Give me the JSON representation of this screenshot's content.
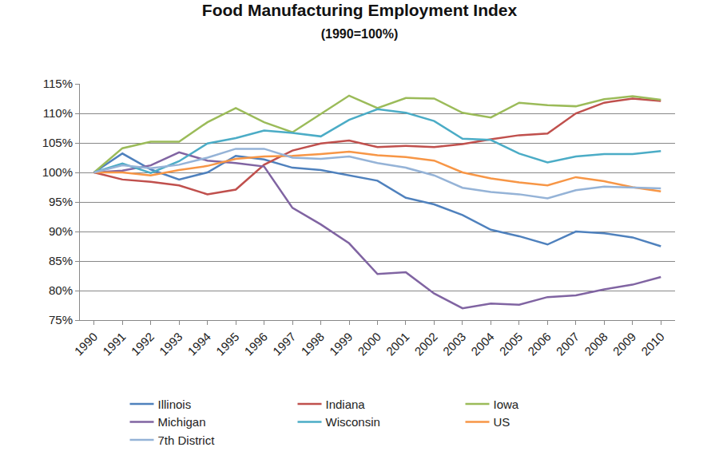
{
  "chart_data": {
    "type": "line",
    "title": "Food Manufacturing Employment Index",
    "subtitle": "(1990=100%)",
    "categories": [
      "1990",
      "1991",
      "1992",
      "1993",
      "1994",
      "1995",
      "1996",
      "1997",
      "1998",
      "1999",
      "2000",
      "2001",
      "2002",
      "2003",
      "2004",
      "2005",
      "2006",
      "2007",
      "2008",
      "2009",
      "2010"
    ],
    "series": [
      {
        "name": "Illinois",
        "color": "#4F81BD",
        "values": [
          100,
          103.2,
          100.5,
          98.8,
          100,
          102.8,
          102.2,
          100.8,
          100.4,
          99.5,
          98.6,
          95.7,
          94.6,
          92.8,
          90.3,
          89.2,
          87.8,
          90,
          89.7,
          89,
          87.5
        ]
      },
      {
        "name": "Indiana",
        "color": "#C0504D",
        "values": [
          100,
          98.8,
          98.4,
          97.8,
          96.3,
          97.1,
          101.3,
          103.7,
          104.9,
          105.4,
          104.3,
          104.5,
          104.3,
          104.8,
          105.6,
          106.3,
          106.6,
          110,
          111.8,
          112.5,
          112.1
        ]
      },
      {
        "name": "Iowa",
        "color": "#9BBB59",
        "values": [
          100,
          104.1,
          105.2,
          105.2,
          108.5,
          110.9,
          108.5,
          106.8,
          109.9,
          113,
          110.9,
          112.6,
          112.5,
          110.1,
          109.3,
          111.8,
          111.4,
          111.2,
          112.4,
          112.9,
          112.3
        ]
      },
      {
        "name": "Michigan",
        "color": "#8064A2",
        "values": [
          100,
          100.3,
          101.2,
          103.4,
          102,
          101.6,
          101,
          94,
          91.2,
          88,
          82.8,
          83.1,
          79.5,
          77,
          77.8,
          77.6,
          78.9,
          79.2,
          80.2,
          81,
          82.3
        ]
      },
      {
        "name": "Wisconsin",
        "color": "#4BACC6",
        "values": [
          100,
          101.5,
          99.9,
          101.9,
          104.9,
          105.8,
          107.1,
          106.7,
          106.1,
          108.9,
          110.7,
          110.1,
          108.7,
          105.7,
          105.5,
          103.2,
          101.7,
          102.7,
          103.1,
          103.1,
          103.6
        ]
      },
      {
        "name": "US",
        "color": "#F79646",
        "values": [
          100,
          100,
          99.5,
          100.4,
          101.1,
          102.3,
          102.7,
          102.8,
          103.1,
          103.5,
          102.9,
          102.6,
          102,
          100,
          99,
          98.3,
          97.8,
          99.2,
          98.5,
          97.5,
          96.8
        ]
      },
      {
        "name": "7th District",
        "color": "#95B3D7",
        "values": [
          100,
          101.2,
          100.7,
          101.3,
          102.5,
          104,
          104,
          102.5,
          102.3,
          102.7,
          101.6,
          100.8,
          99.5,
          97.4,
          96.7,
          96.3,
          95.6,
          97,
          97.6,
          97.4,
          97.3
        ]
      }
    ],
    "ylim": [
      75,
      115
    ],
    "yticks": [
      {
        "value": 75,
        "label": "75%"
      },
      {
        "value": 80,
        "label": "80%"
      },
      {
        "value": 85,
        "label": "85%"
      },
      {
        "value": 90,
        "label": "90%"
      },
      {
        "value": 95,
        "label": "95%"
      },
      {
        "value": 100,
        "label": "100%"
      },
      {
        "value": 105,
        "label": "105%"
      },
      {
        "value": 110,
        "label": "110%"
      },
      {
        "value": 115,
        "label": "115%"
      }
    ],
    "grid": true,
    "legend": "bottom"
  }
}
